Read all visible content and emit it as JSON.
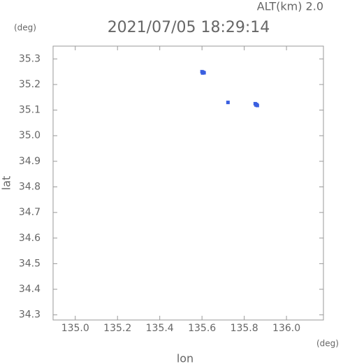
{
  "chart_data": {
    "type": "scatter",
    "title": "2021/07/05 18:29:14",
    "subtitle": "ALT(km) 2.0",
    "xlabel": "lon",
    "ylabel": "lat",
    "x_unit": "(deg)",
    "y_unit": "(deg)",
    "color": "#3a5fe0",
    "xlim": [
      134.895,
      136.175
    ],
    "ylim": [
      34.28,
      35.35
    ],
    "xticks": [
      {
        "value": 135.0,
        "label": "135.0"
      },
      135.2,
      135.4,
      135.6,
      135.8,
      {
        "value": 136.0,
        "label": "136.0"
      }
    ],
    "yticks": [
      34.3,
      34.4,
      34.5,
      34.6,
      34.7,
      34.8,
      34.9,
      {
        "value": 35.0,
        "label": "35.0"
      },
      35.1,
      35.2,
      35.3
    ],
    "x": [
      135.6,
      135.605,
      135.61,
      135.603,
      135.723,
      135.852,
      135.858,
      135.862,
      135.856
    ],
    "y": [
      35.25,
      35.248,
      35.246,
      35.245,
      35.13,
      35.125,
      35.122,
      35.118,
      35.12
    ]
  }
}
